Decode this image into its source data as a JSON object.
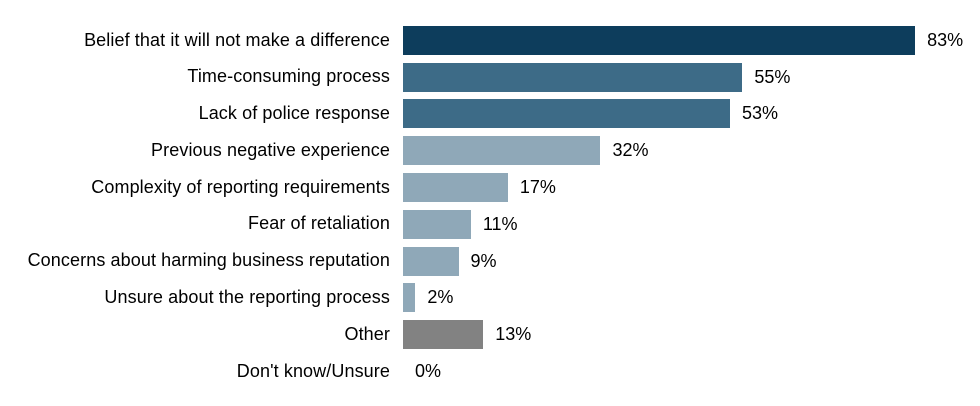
{
  "chart": {
    "accent_dark": "#0d3d5c",
    "accent_medium": "#3d6b87",
    "accent_light": "#8fa8b8",
    "accent_gray": "#828282",
    "background": "#ffffff",
    "text_color": "#000000"
  },
  "chart_data": {
    "type": "bar",
    "orientation": "horizontal",
    "title": "",
    "xlabel": "",
    "ylabel": "",
    "xlim": [
      0,
      100
    ],
    "grid": false,
    "legend": false,
    "unit": "%",
    "categories": [
      "Belief that it will not make a difference",
      "Time-consuming process",
      "Lack of police response",
      "Previous negative experience",
      "Complexity of reporting requirements",
      "Fear of retaliation",
      "Concerns about harming business reputation",
      "Unsure about the reporting process",
      "Other",
      "Don't know/Unsure"
    ],
    "values": [
      83,
      55,
      53,
      32,
      17,
      11,
      9,
      2,
      13,
      0
    ],
    "value_labels": [
      "83%",
      "55%",
      "53%",
      "32%",
      "17%",
      "11%",
      "9%",
      "2%",
      "13%",
      "0%"
    ],
    "bar_colors": [
      "#0d3d5c",
      "#3d6b87",
      "#3d6b87",
      "#8fa8b8",
      "#8fa8b8",
      "#8fa8b8",
      "#8fa8b8",
      "#8fa8b8",
      "#828282",
      "#ffffff"
    ]
  }
}
